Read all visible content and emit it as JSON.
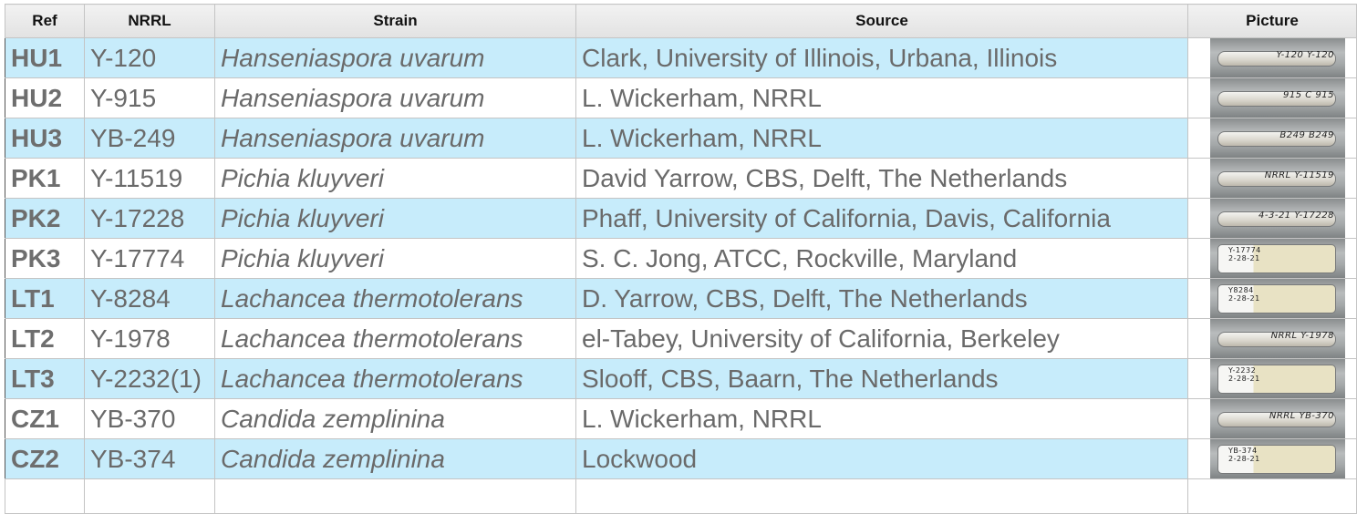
{
  "headers": {
    "ref": "Ref",
    "nrrl": "NRRL",
    "strain": "Strain",
    "source": "Source",
    "picture": "Picture"
  },
  "rows": [
    {
      "ref": "HU1",
      "nrrl": "Y-120",
      "strain": "Hanseniaspora uvarum",
      "source": "Clark, University of Illinois, Urbana, Illinois",
      "tube_label": "Y-120 Y-120",
      "tube_style": "tube",
      "stripe": "blue"
    },
    {
      "ref": "HU2",
      "nrrl": "Y-915",
      "strain": "Hanseniaspora uvarum",
      "source": "L. Wickerham, NRRL",
      "tube_label": "915 C 915",
      "tube_style": "tube",
      "stripe": "white"
    },
    {
      "ref": "HU3",
      "nrrl": "YB-249",
      "strain": "Hanseniaspora uvarum",
      "source": "L. Wickerham, NRRL",
      "tube_label": "B249 B249",
      "tube_style": "tube",
      "stripe": "blue"
    },
    {
      "ref": "PK1",
      "nrrl": "Y-11519",
      "strain": "Pichia kluyveri",
      "source": "David Yarrow, CBS, Delft, The Netherlands",
      "tube_label": "NRRL Y-11519",
      "tube_style": "tube",
      "stripe": "white"
    },
    {
      "ref": "PK2",
      "nrrl": "Y-17228",
      "strain": "Pichia kluyveri",
      "source": "Phaff, University of California, Davis, California",
      "tube_label": "4-3-21 Y-17228",
      "tube_style": "tube",
      "stripe": "blue"
    },
    {
      "ref": "PK3",
      "nrrl": "Y-17774",
      "strain": "Pichia kluyveri",
      "source": "S. C. Jong, ATCC, Rockville, Maryland",
      "tube_label": "Y-17774\n2-28-21",
      "tube_style": "slant",
      "stripe": "white"
    },
    {
      "ref": "LT1",
      "nrrl": "Y-8284",
      "strain": "Lachancea thermotolerans",
      "source": "D. Yarrow, CBS, Delft, The Netherlands",
      "tube_label": "Y8284\n2-28-21",
      "tube_style": "slant",
      "stripe": "blue"
    },
    {
      "ref": "LT2",
      "nrrl": "Y-1978",
      "strain": "Lachancea thermotolerans",
      "source": "el-Tabey, University of California, Berkeley",
      "tube_label": "NRRL Y-1978",
      "tube_style": "tube",
      "stripe": "white"
    },
    {
      "ref": "LT3",
      "nrrl": "Y-2232(1)",
      "strain": "Lachancea thermotolerans",
      "source": "Slooff, CBS, Baarn, The Netherlands",
      "tube_label": "Y-2232\n2-28-21",
      "tube_style": "slant",
      "stripe": "blue"
    },
    {
      "ref": "CZ1",
      "nrrl": "YB-370",
      "strain": "Candida zemplinina",
      "source": "L. Wickerham, NRRL",
      "tube_label": "NRRL YB-370",
      "tube_style": "tube",
      "stripe": "white"
    },
    {
      "ref": "CZ2",
      "nrrl": "YB-374",
      "strain": "Candida zemplinina",
      "source": "Lockwood",
      "tube_label": "YB-374\n2-28-21",
      "tube_style": "slant",
      "stripe": "blue"
    }
  ]
}
